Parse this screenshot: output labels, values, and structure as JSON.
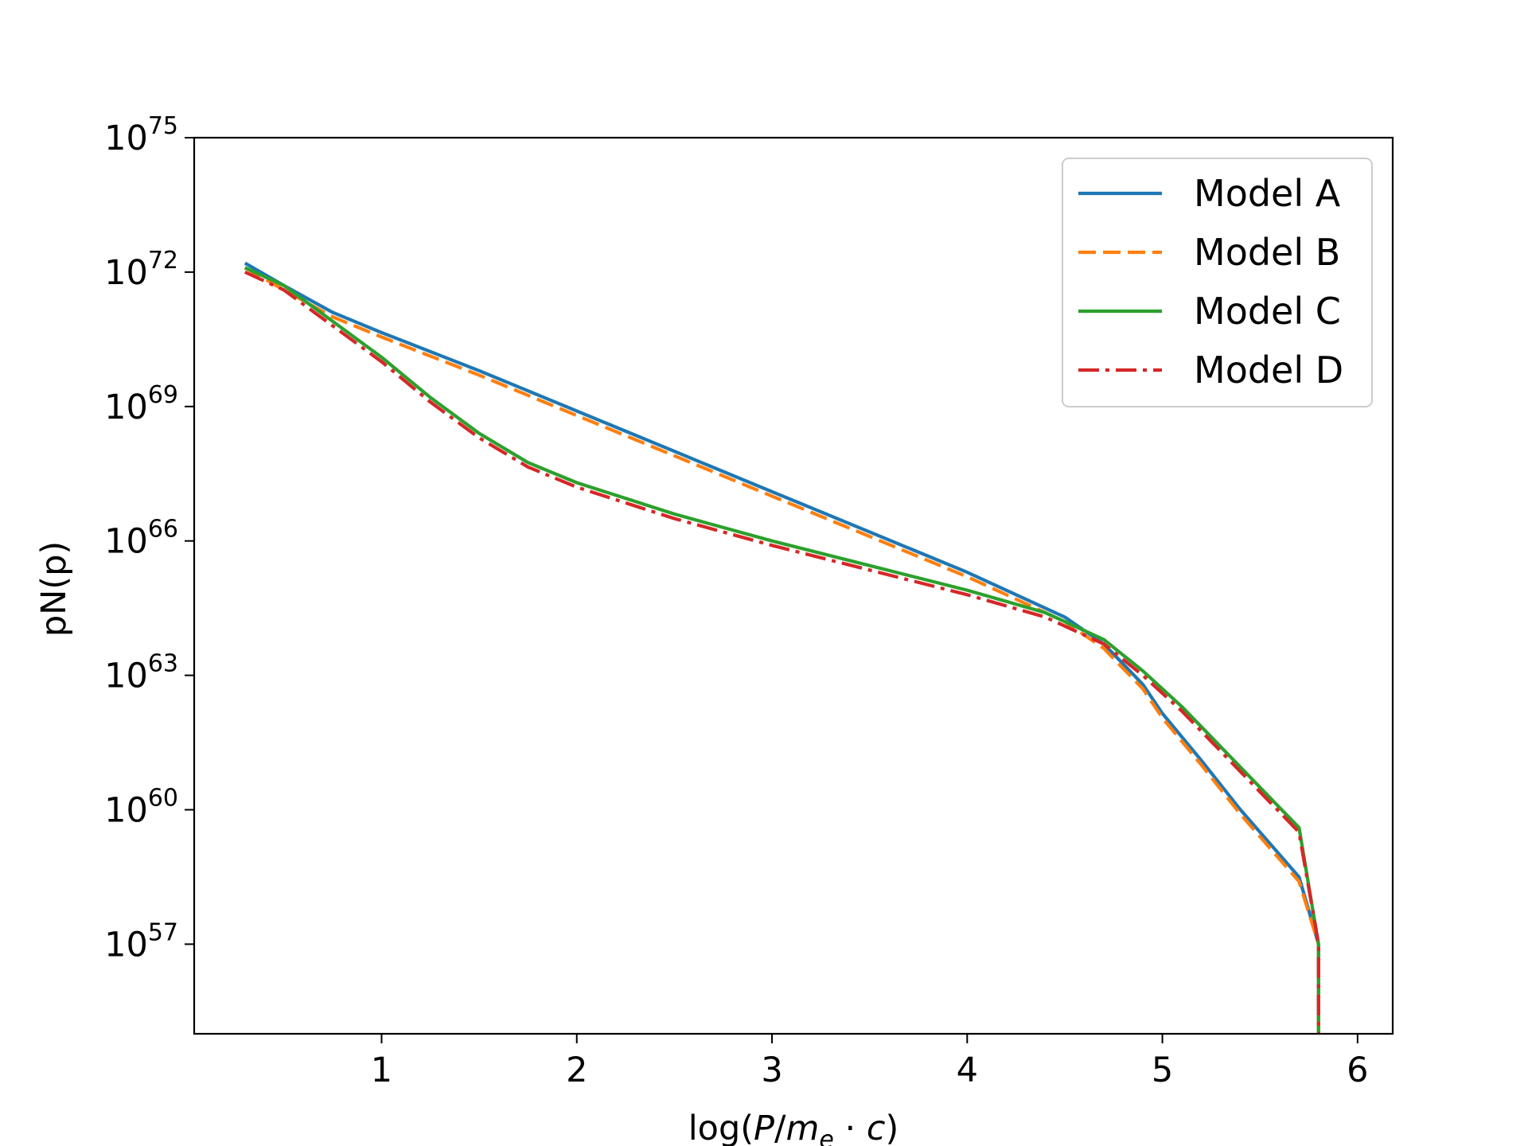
{
  "chart_data": {
    "type": "line",
    "title": "",
    "xlabel": {
      "prefix": "log(",
      "P": "P",
      "slash": "/",
      "m": "m",
      "e": "e",
      "dot": " · ",
      "c": "c",
      "suffix": ")"
    },
    "ylabel": "pN(p)",
    "xlim": [
      0.04,
      6.18
    ],
    "ylim": [
      55,
      75
    ],
    "yscale": "log",
    "grid": false,
    "legend_position": "top-right",
    "x_ticks": [
      1,
      2,
      3,
      4,
      5,
      6
    ],
    "x_tick_labels": [
      "1",
      "2",
      "3",
      "4",
      "5",
      "6"
    ],
    "y_ticks": [
      57,
      60,
      63,
      66,
      69,
      72,
      75
    ],
    "y_tick_base": "10",
    "y_tick_exponents": [
      "57",
      "60",
      "63",
      "66",
      "69",
      "72",
      "75"
    ],
    "series": [
      {
        "name": "Model A",
        "color": "#1f77b4",
        "dash": "solid",
        "x": [
          0.3,
          0.5,
          0.75,
          1.0,
          1.5,
          2.0,
          2.5,
          3.0,
          3.5,
          4.0,
          4.5,
          4.7,
          4.9,
          5.0,
          5.2,
          5.4,
          5.6,
          5.7,
          5.8,
          5.8
        ],
        "y": [
          72.2,
          71.7,
          71.1,
          70.65,
          69.8,
          68.9,
          68.0,
          67.1,
          66.2,
          65.3,
          64.3,
          63.7,
          62.8,
          62.15,
          61.1,
          60.0,
          59.0,
          58.5,
          57.0,
          55.0
        ]
      },
      {
        "name": "Model B",
        "color": "#ff7f0e",
        "dash": "dashed",
        "x": [
          0.3,
          0.5,
          0.75,
          1.0,
          1.5,
          2.0,
          2.5,
          3.0,
          3.5,
          4.0,
          4.5,
          4.7,
          4.9,
          5.0,
          5.2,
          5.4,
          5.6,
          5.7,
          5.8,
          5.8
        ],
        "y": [
          72.1,
          71.6,
          71.0,
          70.55,
          69.7,
          68.8,
          67.9,
          67.0,
          66.1,
          65.2,
          64.2,
          63.6,
          62.7,
          62.05,
          61.0,
          59.9,
          58.9,
          58.4,
          57.0,
          55.0
        ]
      },
      {
        "name": "Model C",
        "color": "#2ca02c",
        "dash": "solid",
        "x": [
          0.3,
          0.5,
          0.75,
          1.0,
          1.25,
          1.5,
          1.75,
          2.0,
          2.5,
          3.0,
          3.5,
          4.0,
          4.4,
          4.7,
          4.9,
          5.1,
          5.3,
          5.5,
          5.7,
          5.8,
          5.8
        ],
        "y": [
          72.1,
          71.7,
          70.9,
          70.1,
          69.2,
          68.4,
          67.75,
          67.3,
          66.6,
          66.0,
          65.45,
          64.9,
          64.4,
          63.8,
          63.1,
          62.3,
          61.4,
          60.5,
          59.6,
          57.0,
          55.0
        ]
      },
      {
        "name": "Model D",
        "color": "#d62728",
        "dash": "dashdot",
        "x": [
          0.3,
          0.5,
          0.75,
          1.0,
          1.25,
          1.5,
          1.75,
          2.0,
          2.5,
          3.0,
          3.5,
          4.0,
          4.4,
          4.7,
          4.9,
          5.1,
          5.3,
          5.5,
          5.7,
          5.8,
          5.8
        ],
        "y": [
          72.0,
          71.6,
          70.8,
          70.0,
          69.1,
          68.3,
          67.65,
          67.2,
          66.5,
          65.9,
          65.35,
          64.8,
          64.3,
          63.7,
          63.0,
          62.2,
          61.3,
          60.4,
          59.5,
          57.0,
          55.0
        ]
      }
    ]
  }
}
